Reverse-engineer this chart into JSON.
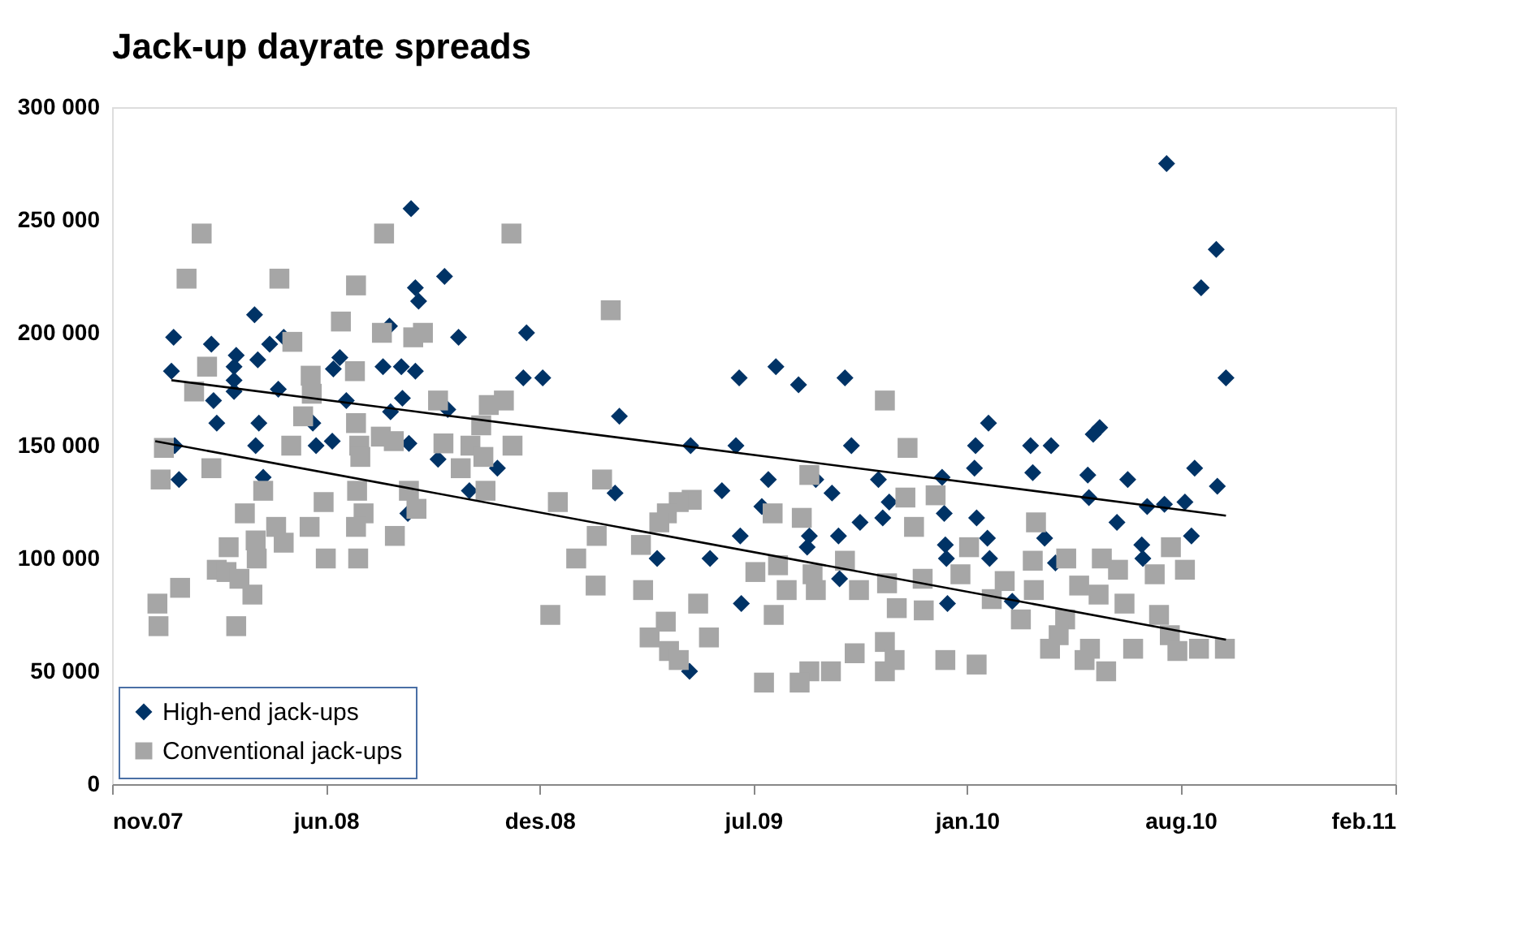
{
  "chart_data": {
    "type": "scatter",
    "title": "Jack-up dayrate spreads",
    "xlim": [
      "2007-11-25",
      "2011-02-26"
    ],
    "xticks": [
      {
        "value": "2007-11-25",
        "label": "nov.07"
      },
      {
        "value": "2008-06-10",
        "label": "jun.08"
      },
      {
        "value": "2008-12-25",
        "label": "des.08"
      },
      {
        "value": "2009-07-11",
        "label": "jul.09"
      },
      {
        "value": "2010-01-25",
        "label": "jan.10"
      },
      {
        "value": "2010-08-11",
        "label": "aug.10"
      },
      {
        "value": "2011-02-26",
        "label": "feb.11"
      }
    ],
    "ylim": [
      0,
      300000
    ],
    "yticks": [
      {
        "value": 0,
        "label": "0"
      },
      {
        "value": 50000,
        "label": "50 000"
      },
      {
        "value": 100000,
        "label": "100 000"
      },
      {
        "value": 150000,
        "label": "150 000"
      },
      {
        "value": 200000,
        "label": "200 000"
      },
      {
        "value": 250000,
        "label": "250 000"
      },
      {
        "value": 300000,
        "label": "300 000"
      }
    ],
    "grid": false,
    "legend": "bottom left",
    "series": [
      {
        "name": "High-end jack-ups",
        "marker": "diamond",
        "color": "#003366",
        "x": [
          "2008-08-28",
          "2008-09-28",
          "2008-09-01",
          "2008-09-04",
          "2008-04-05",
          "2008-01-21",
          "2008-02-25",
          "2008-04-19",
          "2008-03-19",
          "2008-04-08",
          "2008-05-02",
          "2008-06-23",
          "2008-06-17",
          "2008-03-17",
          "2008-03-17",
          "2008-03-17",
          "2008-01-19",
          "2008-08-02",
          "2008-08-19",
          "2008-09-01",
          "2008-08-08",
          "2008-10-11",
          "2008-12-13",
          "2008-12-10",
          "2008-12-28",
          "2008-04-27",
          "2008-02-27",
          "2008-06-29",
          "2008-08-20",
          "2008-08-09",
          "2008-10-01",
          "2008-03-01",
          "2008-04-09",
          "2008-05-29",
          "2008-04-06",
          "2008-06-16",
          "2008-08-26",
          "2008-01-22",
          "2008-01-26",
          "2008-04-13",
          "2008-09-22",
          "2008-11-16",
          "2008-10-21",
          "2008-08-25",
          "2008-06-01",
          "2009-03-09",
          "2009-06-28",
          "2009-08-01",
          "2009-08-22",
          "2009-10-04",
          "2009-05-14",
          "2009-06-25",
          "2009-10-10",
          "2010-02-14",
          "2010-02-02",
          "2010-02-01",
          "2009-03-05",
          "2009-07-25",
          "2009-09-22",
          "2009-06-12",
          "2009-11-04",
          "2010-01-02",
          "2009-09-07",
          "2009-07-19",
          "2009-11-14",
          "2009-11-08",
          "2009-10-18",
          "2010-01-04",
          "2010-02-03",
          "2009-06-29",
          "2009-09-01",
          "2009-09-28",
          "2009-08-30",
          "2010-01-05",
          "2010-01-06",
          "2010-02-13",
          "2010-02-15",
          "2009-04-13",
          "2009-06-01",
          "2009-09-29",
          "2009-06-30",
          "2010-01-07",
          "2009-05-13",
          "2010-07-29",
          "2010-09-13",
          "2010-08-30",
          "2010-09-22",
          "2010-03-25",
          "2010-04-13",
          "2010-05-28",
          "2010-05-22",
          "2010-03-27",
          "2010-05-17",
          "2010-06-23",
          "2010-08-24",
          "2010-09-14",
          "2010-05-18",
          "2010-07-11",
          "2010-07-27",
          "2010-08-15",
          "2010-06-13",
          "2010-08-21",
          "2010-07-06",
          "2010-07-07",
          "2010-04-07",
          "2010-04-17",
          "2010-03-08"
        ],
        "values": [
          255000,
          225000,
          220000,
          214000,
          208000,
          198000,
          195000,
          195000,
          190000,
          188000,
          198000,
          189000,
          184000,
          185000,
          179000,
          174000,
          183000,
          185000,
          185000,
          183000,
          203000,
          198000,
          200000,
          180000,
          180000,
          175000,
          170000,
          170000,
          171000,
          165000,
          166000,
          160000,
          160000,
          160000,
          150000,
          152000,
          151000,
          150000,
          135000,
          136000,
          144000,
          140000,
          130000,
          120000,
          150000,
          163000,
          180000,
          185000,
          177000,
          180000,
          150000,
          150000,
          150000,
          160000,
          150000,
          140000,
          129000,
          135000,
          129000,
          130000,
          135000,
          136000,
          135000,
          123000,
          125000,
          118000,
          116000,
          120000,
          118000,
          110000,
          110000,
          110000,
          105000,
          106000,
          100000,
          109000,
          100000,
          100000,
          100000,
          91000,
          80000,
          80000,
          50000,
          275000,
          237000,
          220000,
          180000,
          150000,
          150000,
          158000,
          155000,
          138000,
          137000,
          135000,
          140000,
          132000,
          127000,
          123000,
          124000,
          125000,
          116000,
          110000,
          106000,
          100000,
          109000,
          98000,
          81000
        ]
      },
      {
        "name": "Conventional jack-ups",
        "marker": "square",
        "color": "#a6a6a6",
        "x": [
          "2008-02-16",
          "2008-08-03",
          "2008-11-29",
          "2008-02-02",
          "2008-04-28",
          "2008-07-08",
          "2008-06-24",
          "2008-08-01",
          "2008-05-10",
          "2008-08-30",
          "2008-09-08",
          "2008-02-21",
          "2008-02-09",
          "2008-05-27",
          "2008-07-07",
          "2008-05-28",
          "2008-05-20",
          "2008-07-08",
          "2008-09-22",
          "2008-11-08",
          "2008-11-22",
          "2008-11-01",
          "2008-07-31",
          "2008-05-09",
          "2008-07-11",
          "2008-07-12",
          "2008-08-12",
          "2008-09-27",
          "2008-10-22",
          "2008-11-30",
          "2008-11-03",
          "2008-01-12",
          "2008-02-25",
          "2008-01-09",
          "2008-10-13",
          "2008-04-13",
          "2008-07-09",
          "2008-11-05",
          "2008-08-26",
          "2008-06-08",
          "2008-03-27",
          "2008-07-15",
          "2008-09-02",
          "2008-04-25",
          "2008-05-26",
          "2008-07-08",
          "2008-03-12",
          "2008-04-06",
          "2008-04-07",
          "2008-05-02",
          "2008-08-13",
          "2008-06-10",
          "2008-07-10",
          "2008-03-01",
          "2008-03-10",
          "2008-01-27",
          "2008-03-22",
          "2008-04-03",
          "2008-01-06",
          "2008-01-07",
          "2008-03-19",
          "2009-01-04",
          "2009-01-11",
          "2009-03-01",
          "2009-11-10",
          "2009-12-01",
          "2009-02-21",
          "2009-09-01",
          "2009-12-27",
          "2009-11-29",
          "2009-05-15",
          "2009-05-03",
          "2009-04-22",
          "2009-04-15",
          "2009-07-29",
          "2009-08-25",
          "2009-12-07",
          "2009-02-16",
          "2009-03-29",
          "2009-01-28",
          "2010-01-27",
          "2009-07-13",
          "2009-08-03",
          "2009-09-04",
          "2009-10-04",
          "2009-08-11",
          "2009-09-07",
          "2009-10-17",
          "2009-11-12",
          "2009-12-15",
          "2010-01-19",
          "2009-02-15",
          "2009-03-31",
          "2009-05-21",
          "2009-07-30",
          "2009-11-21",
          "2009-12-16",
          "2010-02-17",
          "2009-04-21",
          "2009-04-06",
          "2009-05-31",
          "2009-04-24",
          "2009-05-03",
          "2009-10-13",
          "2009-11-10",
          "2009-11-19",
          "2010-01-05",
          "2010-02-03",
          "2009-09-01",
          "2009-09-21",
          "2009-07-21",
          "2009-08-23",
          "2009-11-10",
          "2010-03-30",
          "2010-03-27",
          "2010-04-27",
          "2010-05-30",
          "2010-06-14",
          "2010-08-02",
          "2010-08-15",
          "2010-07-18",
          "2010-03-01",
          "2010-03-28",
          "2010-05-09",
          "2010-05-27",
          "2010-06-20",
          "2010-03-16",
          "2010-07-22",
          "2010-04-26",
          "2010-04-20",
          "2010-04-12",
          "2010-05-19",
          "2010-06-28",
          "2010-08-01",
          "2010-08-08",
          "2010-08-28",
          "2010-09-21",
          "2010-05-14",
          "2010-06-03"
        ],
        "values": [
          244000,
          244000,
          244000,
          224000,
          224000,
          221000,
          205000,
          200000,
          196000,
          198000,
          200000,
          185000,
          174000,
          181000,
          183000,
          173000,
          163000,
          160000,
          170000,
          168000,
          170000,
          159000,
          154000,
          150000,
          150000,
          145000,
          152000,
          151000,
          150000,
          150000,
          145000,
          149000,
          140000,
          135000,
          140000,
          130000,
          130000,
          130000,
          130000,
          125000,
          120000,
          120000,
          122000,
          114000,
          114000,
          114000,
          105000,
          108000,
          100000,
          107000,
          110000,
          100000,
          100000,
          95000,
          94000,
          87000,
          91000,
          84000,
          80000,
          70000,
          70000,
          75000,
          125000,
          210000,
          170000,
          149000,
          135000,
          137000,
          128000,
          127000,
          126000,
          125000,
          120000,
          116000,
          120000,
          118000,
          114000,
          110000,
          106000,
          100000,
          105000,
          94000,
          97000,
          93000,
          99000,
          86000,
          86000,
          86000,
          89000,
          91000,
          93000,
          88000,
          86000,
          80000,
          75000,
          78000,
          77000,
          82000,
          72000,
          65000,
          65000,
          59000,
          55000,
          58000,
          63000,
          55000,
          55000,
          53000,
          50000,
          50000,
          45000,
          45000,
          50000,
          116000,
          99000,
          100000,
          100000,
          95000,
          105000,
          95000,
          93000,
          90000,
          86000,
          88000,
          84000,
          80000,
          73000,
          75000,
          73000,
          66000,
          60000,
          60000,
          60000,
          66000,
          59000,
          60000,
          60000,
          55000,
          50000
        ]
      },
      {
        "type": "line",
        "color": "#000000",
        "line_style": "solid",
        "x": [
          "2008-01-19",
          "2010-09-22"
        ],
        "values": [
          179000,
          119000
        ]
      },
      {
        "type": "line",
        "color": "#000000",
        "line_style": "solid",
        "x": [
          "2008-01-04",
          "2010-09-22"
        ],
        "values": [
          152000,
          64000
        ]
      }
    ]
  }
}
